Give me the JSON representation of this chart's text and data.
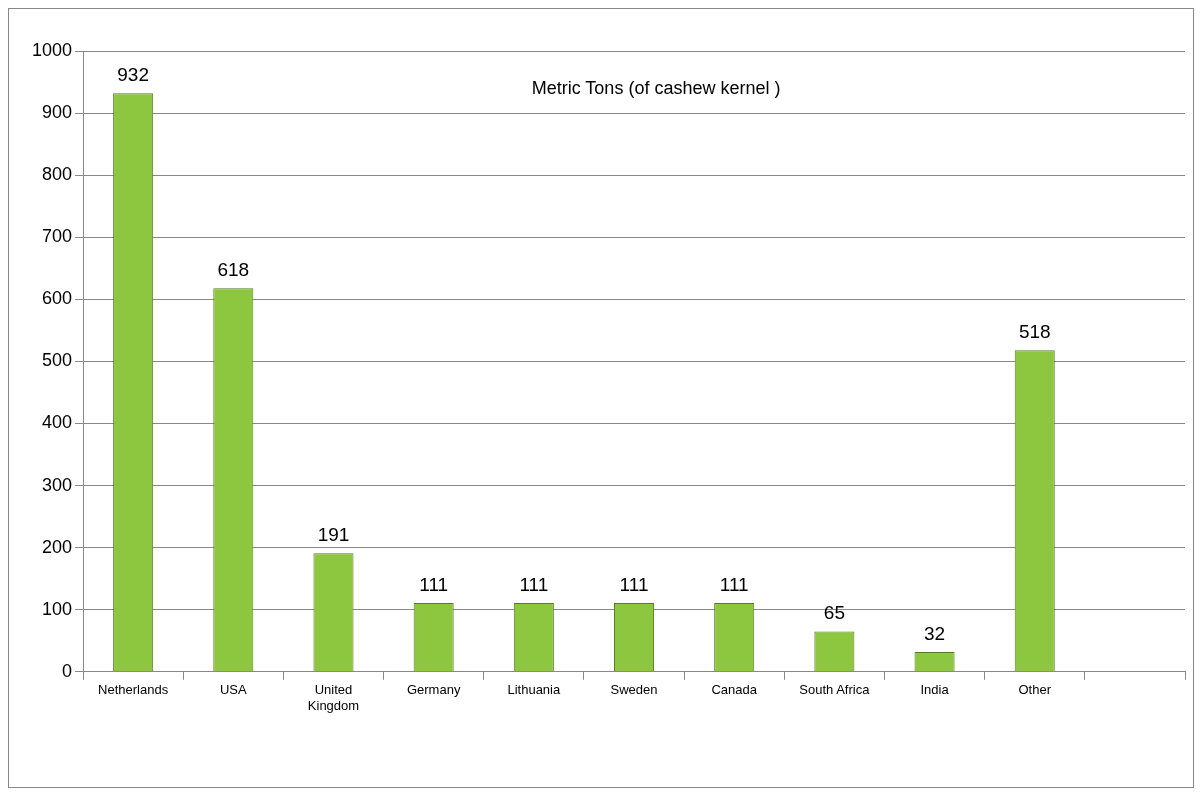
{
  "chart_data": {
    "type": "bar",
    "title": "Metric Tons (of cashew kernel )",
    "categories": [
      "Netherlands",
      "USA",
      "United Kingdom",
      "Germany",
      "Lithuania",
      "Sweden",
      "Canada",
      "South Africa",
      "India",
      "Other",
      null
    ],
    "values": [
      932,
      618,
      191,
      111,
      111,
      111,
      111,
      65,
      32,
      518,
      null
    ],
    "color": "#8dc63f",
    "ylim": [
      0,
      1000
    ],
    "yticks": [
      0,
      100,
      200,
      300,
      400,
      500,
      600,
      700,
      800,
      900,
      1000
    ],
    "grid": "y",
    "data_labels": true
  }
}
